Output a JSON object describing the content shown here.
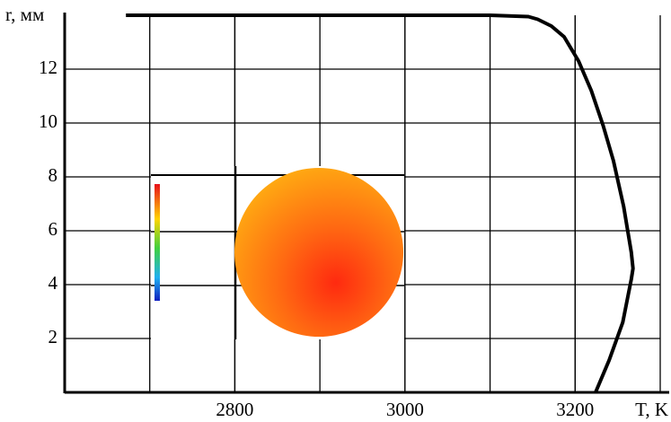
{
  "chart_data": {
    "type": "line",
    "x_label": "T, K",
    "y_label": "r, мм",
    "x": [
      2672,
      3100,
      3145,
      3156,
      3172,
      3187,
      3204,
      3219,
      3233,
      3245,
      3257,
      3266,
      3268,
      3266,
      3256,
      3240,
      3224
    ],
    "series": [
      {
        "color": "#000000",
        "values": [
          14,
          14,
          13.95,
          13.85,
          13.6,
          13.2,
          12.3,
          11.2,
          9.9,
          8.6,
          6.9,
          5.2,
          4.6,
          4.2,
          2.6,
          1.2,
          0
        ]
      }
    ],
    "xlim": [
      2600,
      3300
    ],
    "xticks": [
      2800,
      3000,
      3200
    ],
    "ylim": [
      0,
      14
    ],
    "yticks": [
      2,
      4,
      6,
      8,
      10,
      12
    ],
    "grid": true,
    "x_grid_step": 100
  }
}
